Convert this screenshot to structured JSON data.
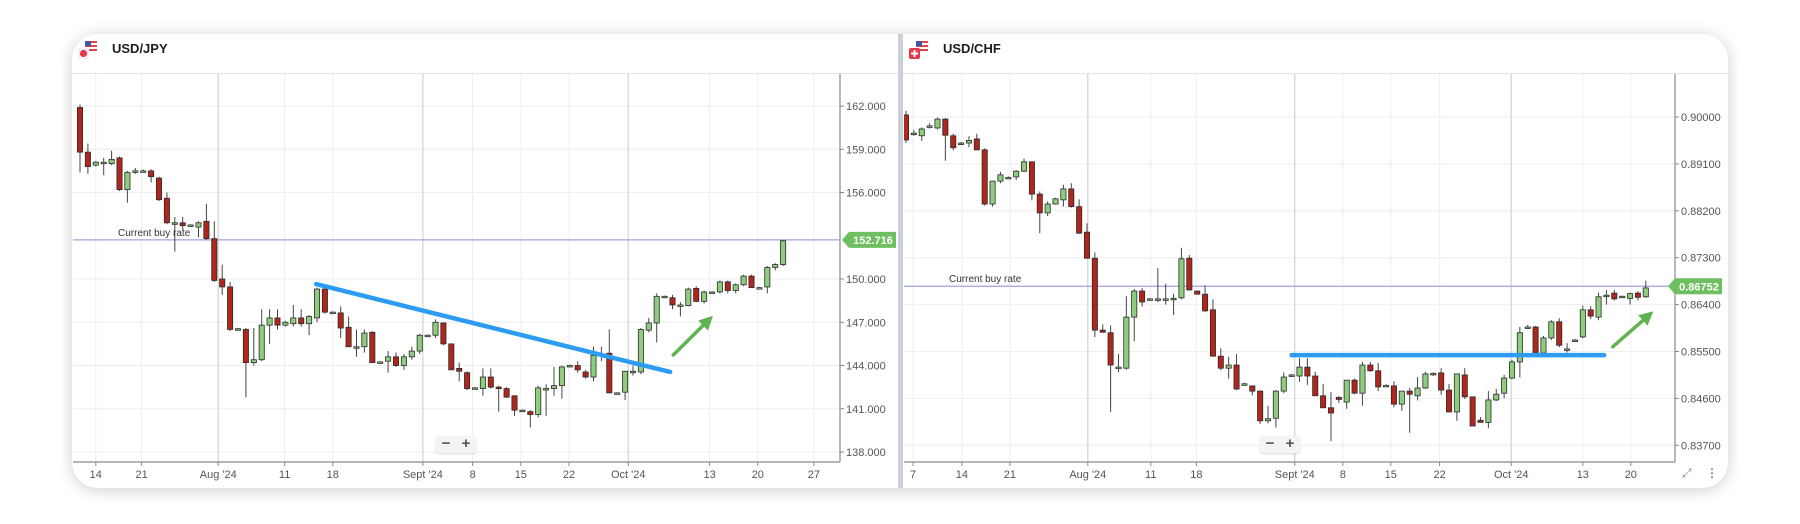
{
  "panels": [
    {
      "pair": "USD/JPY",
      "flag_icon": "usd-jpy-flag-icon",
      "current_rate_label": "Current buy rate",
      "current_rate": "152.716"
    },
    {
      "pair": "USD/CHF",
      "flag_icon": "usd-chf-flag-icon",
      "current_rate_label": "Current buy rate",
      "current_rate": "0.86752"
    }
  ],
  "zoom_controls": {
    "minus": "−",
    "plus": "+"
  },
  "corner_icons": {
    "expand": "expand-icon",
    "menu": "more-vertical-icon"
  },
  "colors": {
    "up": "#8fcd7e",
    "down": "#b0261c",
    "candle_border": "#2b2b2b",
    "trendline": "#2b9cf2",
    "arrow": "#5fb350",
    "current_rate_line": "#a3a0dc",
    "badge": "#6dbf5f"
  },
  "chart_data": [
    {
      "type": "candlestick",
      "title": "USD/JPY",
      "ylim": [
        136.5,
        164.5
      ],
      "y_ticks": [
        "162.000",
        "159.000",
        "156.000",
        "150.000",
        "147.000",
        "144.000",
        "141.000",
        "138.000"
      ],
      "y_tick_values": [
        162,
        159,
        156,
        150,
        147,
        144,
        141,
        138
      ],
      "x_ticks": [
        "14",
        "21",
        "Aug '24",
        "11",
        "18",
        "Sept '24",
        "8",
        "15",
        "22",
        "Oct '24",
        "13",
        "20",
        "27"
      ],
      "month_ticks": [
        "Aug '24",
        "Sept '24",
        "Oct '24"
      ],
      "current_rate": 152.716,
      "grid": true,
      "trendline": {
        "from": [
          29.9,
          149.65
        ],
        "to": [
          74.7,
          143.55
        ]
      },
      "arrow": {
        "from": [
          75.1,
          144.73
        ],
        "to": [
          80.0,
          147.39
        ]
      },
      "candles_ohlc": [
        [
          161.9,
          162.1,
          157.4,
          158.8
        ],
        [
          158.8,
          159.4,
          157.3,
          157.8
        ],
        [
          157.9,
          158.2,
          157.8,
          158.1
        ],
        [
          158.1,
          158.4,
          157.2,
          158.1
        ],
        [
          158.0,
          158.9,
          157.9,
          158.3
        ],
        [
          158.4,
          158.5,
          156.1,
          156.2
        ],
        [
          156.2,
          157.5,
          155.3,
          157.4
        ],
        [
          157.5,
          157.7,
          157.3,
          157.5
        ],
        [
          157.5,
          157.6,
          157.4,
          157.5
        ],
        [
          157.5,
          157.6,
          156.7,
          157.1
        ],
        [
          157.0,
          157.1,
          155.4,
          155.5
        ],
        [
          155.6,
          156.0,
          153.8,
          153.9
        ],
        [
          153.9,
          154.3,
          151.9,
          153.9
        ],
        [
          153.9,
          154.3,
          153.4,
          153.7
        ],
        [
          153.75,
          153.8,
          153.7,
          153.75
        ],
        [
          153.6,
          154.0,
          152.9,
          153.9
        ],
        [
          154.0,
          155.2,
          152.7,
          152.8
        ],
        [
          152.8,
          154.0,
          149.8,
          149.9
        ],
        [
          150.0,
          151.0,
          148.9,
          149.45
        ],
        [
          149.45,
          149.8,
          146.4,
          146.5
        ],
        [
          146.55,
          146.6,
          146.5,
          146.55
        ],
        [
          146.5,
          146.6,
          141.8,
          144.2
        ],
        [
          144.2,
          146.6,
          144.0,
          144.4
        ],
        [
          144.4,
          147.9,
          144.3,
          146.8
        ],
        [
          146.8,
          147.9,
          145.5,
          147.3
        ],
        [
          147.3,
          147.9,
          146.5,
          146.8
        ],
        [
          146.8,
          147.1,
          146.7,
          147.0
        ],
        [
          146.9,
          148.2,
          146.7,
          147.3
        ],
        [
          147.3,
          147.9,
          146.7,
          146.9
        ],
        [
          146.9,
          147.5,
          146.1,
          147.4
        ],
        [
          147.3,
          149.4,
          147.0,
          149.3
        ],
        [
          149.3,
          149.4,
          147.6,
          147.7
        ],
        [
          147.7,
          147.75,
          147.65,
          147.7
        ],
        [
          147.65,
          148.1,
          145.9,
          146.6
        ],
        [
          146.65,
          147.4,
          145.3,
          145.3
        ],
        [
          145.3,
          146.5,
          144.6,
          145.3
        ],
        [
          145.3,
          146.5,
          144.9,
          146.25
        ],
        [
          146.3,
          146.4,
          144.2,
          144.2
        ],
        [
          144.25,
          144.3,
          144.2,
          144.25
        ],
        [
          144.3,
          145.0,
          143.5,
          144.6
        ],
        [
          144.6,
          144.9,
          143.9,
          144.0
        ],
        [
          144.0,
          144.8,
          143.7,
          144.6
        ],
        [
          144.6,
          145.3,
          144.4,
          145.0
        ],
        [
          145.0,
          146.2,
          144.8,
          146.1
        ],
        [
          146.1,
          146.15,
          146.05,
          146.1
        ],
        [
          146.1,
          147.2,
          145.9,
          147.0
        ],
        [
          146.95,
          147.0,
          145.4,
          145.5
        ],
        [
          145.5,
          145.5,
          143.7,
          143.7
        ],
        [
          143.8,
          144.2,
          142.9,
          143.6
        ],
        [
          143.5,
          143.6,
          142.3,
          142.4
        ],
        [
          142.45,
          142.5,
          142.4,
          142.45
        ],
        [
          142.4,
          143.8,
          141.9,
          143.2
        ],
        [
          143.2,
          143.8,
          142.4,
          142.5
        ],
        [
          142.5,
          142.6,
          140.8,
          142.45
        ],
        [
          142.4,
          142.5,
          141.8,
          141.8
        ],
        [
          141.9,
          141.9,
          140.5,
          140.9
        ],
        [
          140.9,
          140.95,
          140.85,
          140.9
        ],
        [
          140.8,
          140.9,
          139.7,
          140.6
        ],
        [
          140.6,
          142.6,
          140.4,
          142.45
        ],
        [
          142.4,
          142.7,
          140.5,
          142.4
        ],
        [
          142.4,
          143.9,
          141.9,
          142.6
        ],
        [
          142.6,
          144.0,
          141.7,
          143.9
        ],
        [
          144.0,
          144.05,
          143.95,
          144.0
        ],
        [
          144.0,
          144.3,
          143.5,
          143.7
        ],
        [
          143.55,
          143.7,
          143.1,
          143.2
        ],
        [
          143.2,
          145.3,
          142.9,
          144.7
        ],
        [
          144.8,
          145.3,
          144.3,
          144.8
        ],
        [
          144.85,
          146.5,
          142.1,
          142.1
        ],
        [
          142.1,
          142.15,
          142.05,
          142.1
        ],
        [
          142.15,
          143.6,
          141.6,
          143.6
        ],
        [
          143.6,
          144.0,
          143.3,
          143.6
        ],
        [
          143.55,
          146.6,
          143.4,
          146.5
        ],
        [
          146.45,
          147.3,
          146.3,
          146.95
        ],
        [
          146.95,
          149.0,
          145.6,
          148.8
        ],
        [
          148.8,
          148.85,
          148.75,
          148.8
        ],
        [
          148.7,
          148.9,
          147.9,
          148.2
        ],
        [
          148.2,
          148.4,
          147.4,
          148.2
        ],
        [
          148.15,
          149.4,
          148.1,
          149.3
        ],
        [
          149.35,
          149.5,
          148.4,
          148.45
        ],
        [
          148.45,
          149.2,
          148.3,
          149.1
        ],
        [
          149.1,
          149.15,
          149.05,
          149.1
        ],
        [
          149.1,
          149.9,
          149.0,
          149.8
        ],
        [
          149.8,
          149.9,
          149.0,
          149.2
        ],
        [
          149.2,
          149.7,
          149.0,
          149.6
        ],
        [
          149.6,
          150.3,
          149.5,
          150.2
        ],
        [
          150.2,
          150.3,
          149.4,
          149.4
        ],
        [
          149.4,
          149.45,
          149.35,
          149.4
        ],
        [
          149.45,
          150.9,
          149.0,
          150.8
        ],
        [
          150.8,
          151.1,
          150.6,
          151.0
        ],
        [
          151.0,
          152.7,
          150.9,
          152.65
        ]
      ]
    },
    {
      "type": "candlestick",
      "title": "USD/CHF",
      "ylim": [
        0.834,
        0.9045
      ],
      "y_ticks": [
        "0.90000",
        "0.89100",
        "0.88200",
        "0.87300",
        "0.86400",
        "0.85500",
        "0.84600",
        "0.83700"
      ],
      "y_tick_values": [
        0.9,
        0.891,
        0.882,
        0.873,
        0.864,
        0.855,
        0.846,
        0.837
      ],
      "x_ticks": [
        "7",
        "14",
        "21",
        "Aug '24",
        "11",
        "18",
        "Sept '24",
        "8",
        "15",
        "22",
        "Oct '24",
        "13",
        "20"
      ],
      "month_ticks": [
        "Aug '24",
        "Sept '24",
        "Oct '24"
      ],
      "current_rate": 0.86752,
      "grid": true,
      "support_line": {
        "from": [
          49.0,
          0.8543
        ],
        "to": [
          88.7,
          0.8543
        ]
      },
      "arrow": {
        "from": [
          89.8,
          0.8559
        ],
        "to": [
          94.8,
          0.8626
        ]
      },
      "candles_ohlc": [
        [
          0.9004,
          0.9012,
          0.895,
          0.8956
        ],
        [
          0.8969,
          0.8975,
          0.8964,
          0.8969
        ],
        [
          0.8964,
          0.898,
          0.8954,
          0.8977
        ],
        [
          0.8983,
          0.8988,
          0.8978,
          0.8983
        ],
        [
          0.8979,
          0.8999,
          0.8976,
          0.8996
        ],
        [
          0.8996,
          0.8998,
          0.8916,
          0.8965
        ],
        [
          0.8964,
          0.8968,
          0.8936,
          0.8941
        ],
        [
          0.895,
          0.8952,
          0.8948,
          0.895
        ],
        [
          0.895,
          0.8963,
          0.8942,
          0.8955
        ],
        [
          0.8958,
          0.8968,
          0.8937,
          0.8937
        ],
        [
          0.8937,
          0.894,
          0.883,
          0.8833
        ],
        [
          0.8833,
          0.8877,
          0.8828,
          0.8877
        ],
        [
          0.8877,
          0.8895,
          0.8873,
          0.8889
        ],
        [
          0.8884,
          0.8886,
          0.8882,
          0.8884
        ],
        [
          0.8885,
          0.8898,
          0.8879,
          0.8896
        ],
        [
          0.8896,
          0.892,
          0.8894,
          0.8914
        ],
        [
          0.8914,
          0.8914,
          0.884,
          0.8852
        ],
        [
          0.8852,
          0.8857,
          0.8777,
          0.8816
        ],
        [
          0.8816,
          0.8838,
          0.881,
          0.8833
        ],
        [
          0.8833,
          0.8845,
          0.8832,
          0.8843
        ],
        [
          0.8841,
          0.887,
          0.8828,
          0.8862
        ],
        [
          0.8862,
          0.8873,
          0.8826,
          0.8828
        ],
        [
          0.8828,
          0.8842,
          0.8776,
          0.8777
        ],
        [
          0.8779,
          0.8796,
          0.8728,
          0.8729
        ],
        [
          0.8729,
          0.874,
          0.8578,
          0.8591
        ],
        [
          0.8591,
          0.8602,
          0.8586,
          0.8587
        ],
        [
          0.8586,
          0.86,
          0.8434,
          0.8524
        ],
        [
          0.852,
          0.8545,
          0.851,
          0.852
        ],
        [
          0.8518,
          0.8656,
          0.8515,
          0.8616
        ],
        [
          0.8616,
          0.867,
          0.857,
          0.8666
        ],
        [
          0.8666,
          0.8672,
          0.8636,
          0.8645
        ],
        [
          0.8651,
          0.8653,
          0.8649,
          0.8651
        ],
        [
          0.8651,
          0.871,
          0.8645,
          0.8651
        ],
        [
          0.8651,
          0.868,
          0.864,
          0.8651
        ],
        [
          0.865,
          0.8661,
          0.862,
          0.8652
        ],
        [
          0.8653,
          0.8749,
          0.865,
          0.8728
        ],
        [
          0.8729,
          0.8735,
          0.8668,
          0.8668
        ],
        [
          0.8666,
          0.8667,
          0.866,
          0.866
        ],
        [
          0.866,
          0.8677,
          0.8626,
          0.8628
        ],
        [
          0.863,
          0.865,
          0.8541,
          0.8541
        ],
        [
          0.8541,
          0.8556,
          0.8514,
          0.8518
        ],
        [
          0.8518,
          0.854,
          0.8498,
          0.8524
        ],
        [
          0.8524,
          0.8545,
          0.8476,
          0.8478
        ],
        [
          0.8488,
          0.849,
          0.8486,
          0.8488
        ],
        [
          0.8484,
          0.8485,
          0.8466,
          0.8474
        ],
        [
          0.8474,
          0.8475,
          0.8411,
          0.8417
        ],
        [
          0.8417,
          0.8446,
          0.8412,
          0.8421
        ],
        [
          0.8422,
          0.8476,
          0.8404,
          0.8474
        ],
        [
          0.8474,
          0.851,
          0.847,
          0.8501
        ],
        [
          0.8505,
          0.8507,
          0.8503,
          0.8505
        ],
        [
          0.8503,
          0.8537,
          0.8492,
          0.852
        ],
        [
          0.852,
          0.8537,
          0.8486,
          0.8503
        ],
        [
          0.8503,
          0.8511,
          0.8465,
          0.8465
        ],
        [
          0.8465,
          0.8488,
          0.8442,
          0.8442
        ],
        [
          0.8442,
          0.8472,
          0.8378,
          0.8432
        ],
        [
          0.8462,
          0.8464,
          0.8451,
          0.8458
        ],
        [
          0.8453,
          0.8495,
          0.844,
          0.8495
        ],
        [
          0.8495,
          0.8498,
          0.8468,
          0.847
        ],
        [
          0.847,
          0.853,
          0.8446,
          0.8524
        ],
        [
          0.8524,
          0.853,
          0.8511,
          0.8513
        ],
        [
          0.8513,
          0.8528,
          0.8474,
          0.8482
        ],
        [
          0.8485,
          0.8487,
          0.8483,
          0.8485
        ],
        [
          0.8484,
          0.8493,
          0.8443,
          0.8449
        ],
        [
          0.8449,
          0.8474,
          0.8436,
          0.8474
        ],
        [
          0.8474,
          0.848,
          0.8394,
          0.8468
        ],
        [
          0.8465,
          0.8501,
          0.8456,
          0.848
        ],
        [
          0.848,
          0.8511,
          0.8478,
          0.8507
        ],
        [
          0.8508,
          0.851,
          0.8503,
          0.8508
        ],
        [
          0.8509,
          0.8518,
          0.8467,
          0.8476
        ],
        [
          0.8476,
          0.8488,
          0.8434,
          0.8434
        ],
        [
          0.8434,
          0.8507,
          0.8417,
          0.8507
        ],
        [
          0.8505,
          0.8518,
          0.8459,
          0.8463
        ],
        [
          0.8463,
          0.8463,
          0.8407,
          0.8407
        ],
        [
          0.8418,
          0.8424,
          0.8414,
          0.8414
        ],
        [
          0.8414,
          0.8474,
          0.8403,
          0.8457
        ],
        [
          0.8457,
          0.8478,
          0.8455,
          0.8468
        ],
        [
          0.847,
          0.8505,
          0.846,
          0.8499
        ],
        [
          0.8499,
          0.8534,
          0.8497,
          0.853
        ],
        [
          0.853,
          0.8597,
          0.85,
          0.8586
        ],
        [
          0.8597,
          0.8601,
          0.8594,
          0.8597
        ],
        [
          0.8597,
          0.8599,
          0.8542,
          0.8547
        ],
        [
          0.8547,
          0.858,
          0.854,
          0.8576
        ],
        [
          0.8576,
          0.861,
          0.8572,
          0.8607
        ],
        [
          0.8607,
          0.8614,
          0.8558,
          0.8562
        ],
        [
          0.8555,
          0.8566,
          0.8548,
          0.8555
        ],
        [
          0.8572,
          0.8574,
          0.857,
          0.8572
        ],
        [
          0.8578,
          0.8638,
          0.8575,
          0.863
        ],
        [
          0.863,
          0.8637,
          0.8612,
          0.8618
        ],
        [
          0.8616,
          0.8663,
          0.861,
          0.8655
        ],
        [
          0.8658,
          0.8668,
          0.864,
          0.8658
        ],
        [
          0.8662,
          0.8668,
          0.8648,
          0.8651
        ],
        [
          0.8656,
          0.8657,
          0.8655,
          0.8656
        ],
        [
          0.8652,
          0.8663,
          0.864,
          0.8661
        ],
        [
          0.8662,
          0.8666,
          0.8648,
          0.8654
        ],
        [
          0.8655,
          0.8686,
          0.8653,
          0.8672
        ]
      ]
    }
  ]
}
